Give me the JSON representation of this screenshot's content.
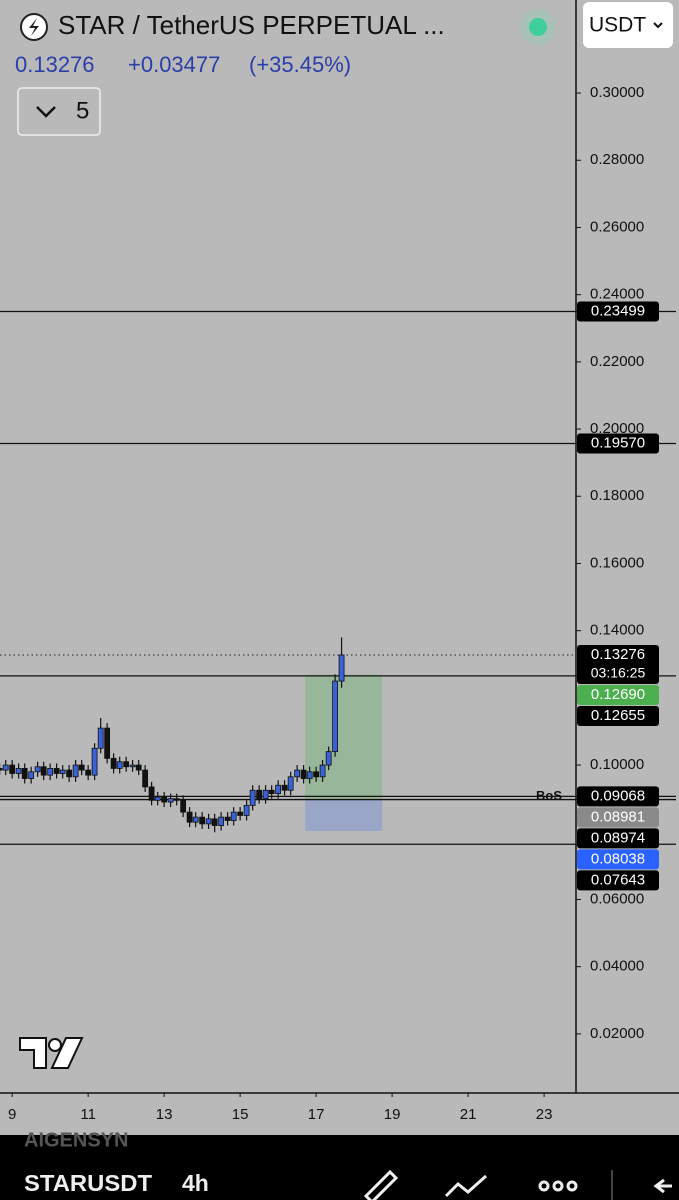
{
  "header": {
    "title": "STAR / TetherUS PERPETUAL ...",
    "price": "0.13276",
    "change": "+0.03477",
    "change_pct": "(+35.45%)",
    "collapse_count": "5",
    "currency": "USDT"
  },
  "chart_data": {
    "type": "candlestick",
    "x": [
      8.67,
      8.83,
      9,
      9.17,
      9.33,
      9.5,
      9.67,
      9.83,
      10,
      10.17,
      10.33,
      10.5,
      10.67,
      10.83,
      11,
      11.17,
      11.33,
      11.5,
      11.67,
      11.83,
      12,
      12.17,
      12.33,
      12.5,
      12.67,
      12.83,
      13,
      13.17,
      13.33,
      13.5,
      13.67,
      13.83,
      14,
      14.17,
      14.33,
      14.5,
      14.67,
      14.83,
      15,
      15.17,
      15.33,
      15.5,
      15.67,
      15.83,
      16,
      16.17,
      16.33,
      16.5,
      16.67,
      16.83,
      17,
      17.17,
      17.33,
      17.5,
      17.67
    ],
    "open": [
      0.099,
      0.0985,
      0.1,
      0.0975,
      0.099,
      0.096,
      0.098,
      0.0995,
      0.097,
      0.099,
      0.0975,
      0.0985,
      0.0965,
      0.1,
      0.0985,
      0.097,
      0.105,
      0.111,
      0.102,
      0.099,
      0.101,
      0.0995,
      0.1,
      0.0985,
      0.0935,
      0.0895,
      0.0905,
      0.089,
      0.09,
      0.0895,
      0.086,
      0.083,
      0.0845,
      0.0825,
      0.084,
      0.082,
      0.0845,
      0.0835,
      0.086,
      0.085,
      0.088,
      0.0925,
      0.09,
      0.0925,
      0.0915,
      0.094,
      0.0925,
      0.0965,
      0.0985,
      0.096,
      0.098,
      0.0965,
      0.1,
      0.104,
      0.125
    ],
    "high": [
      0.1005,
      0.1015,
      0.1015,
      0.1005,
      0.1005,
      0.0995,
      0.101,
      0.101,
      0.1005,
      0.1005,
      0.1,
      0.1,
      0.1015,
      0.1015,
      0.1,
      0.1065,
      0.114,
      0.1125,
      0.1035,
      0.1025,
      0.1025,
      0.1015,
      0.1015,
      0.1,
      0.095,
      0.092,
      0.092,
      0.0915,
      0.0915,
      0.091,
      0.0875,
      0.086,
      0.086,
      0.0855,
      0.0855,
      0.086,
      0.086,
      0.0875,
      0.0875,
      0.0895,
      0.094,
      0.094,
      0.094,
      0.094,
      0.0955,
      0.0955,
      0.098,
      0.1,
      0.1,
      0.0995,
      0.0995,
      0.1015,
      0.1055,
      0.127,
      0.138
    ],
    "low": [
      0.097,
      0.097,
      0.096,
      0.096,
      0.0945,
      0.0945,
      0.0965,
      0.0955,
      0.0955,
      0.096,
      0.096,
      0.095,
      0.095,
      0.097,
      0.0955,
      0.0955,
      0.1035,
      0.1005,
      0.0975,
      0.0975,
      0.098,
      0.098,
      0.097,
      0.092,
      0.088,
      0.088,
      0.0875,
      0.0875,
      0.088,
      0.0845,
      0.0815,
      0.0815,
      0.081,
      0.081,
      0.08,
      0.0805,
      0.082,
      0.082,
      0.0835,
      0.0835,
      0.0865,
      0.0885,
      0.0885,
      0.09,
      0.09,
      0.091,
      0.091,
      0.095,
      0.0945,
      0.0945,
      0.095,
      0.095,
      0.0985,
      0.1025,
      0.123
    ],
    "close": [
      0.0985,
      0.1,
      0.0975,
      0.099,
      0.096,
      0.098,
      0.0995,
      0.097,
      0.099,
      0.0975,
      0.0985,
      0.0965,
      0.1,
      0.0985,
      0.097,
      0.105,
      0.111,
      0.102,
      0.099,
      0.101,
      0.0995,
      0.1,
      0.0985,
      0.0935,
      0.0895,
      0.0905,
      0.089,
      0.09,
      0.0895,
      0.086,
      0.083,
      0.0845,
      0.0825,
      0.084,
      0.082,
      0.0845,
      0.0835,
      0.086,
      0.085,
      0.088,
      0.0925,
      0.09,
      0.0925,
      0.0915,
      0.094,
      0.0925,
      0.0965,
      0.0985,
      0.096,
      0.098,
      0.0965,
      0.1,
      0.104,
      0.125,
      0.13276
    ],
    "up_color": "#3a62d8",
    "down_color": "#111111",
    "xlim": [
      8.68,
      23.84
    ],
    "xticks": [
      9,
      11,
      13,
      15,
      17,
      19,
      21,
      23
    ],
    "ylim": [
      0.0024,
      0.3277
    ],
    "yticks": [
      {
        "value": 0.3,
        "label": "0.30000"
      },
      {
        "value": 0.28,
        "label": "0.28000"
      },
      {
        "value": 0.26,
        "label": "0.26000"
      },
      {
        "value": 0.24,
        "label": "0.24000"
      },
      {
        "value": 0.22,
        "label": "0.22000"
      },
      {
        "value": 0.2,
        "label": "0.20000"
      },
      {
        "value": 0.18,
        "label": "0.18000"
      },
      {
        "value": 0.16,
        "label": "0.16000"
      },
      {
        "value": 0.14,
        "label": "0.14000"
      },
      {
        "value": 0.1,
        "label": "0.10000"
      },
      {
        "value": 0.06,
        "label": "0.06000"
      },
      {
        "value": 0.04,
        "label": "0.04000"
      },
      {
        "value": 0.02,
        "label": "0.02000"
      }
    ],
    "levels": [
      0.23499,
      {
        "value": 0.1957,
        "label": "0.19570"
      },
      0.12655,
      0.09068,
      0.08974,
      0.07643
    ],
    "annotations": [
      {
        "text": "BoS",
        "y": 0.09068
      }
    ],
    "last_price": 0.13276,
    "countdown": "03:16:25",
    "position": {
      "x_start": 16.71,
      "x_end": 18.74,
      "target": {
        "value": 0.1269,
        "label": "0.12690"
      },
      "entry": 0.08981,
      "stop": 0.08038,
      "target_color": "#4caf50",
      "entry_color": "#8a8a8a",
      "stop_color": "#2962ff"
    }
  },
  "footer": {
    "watermark": "AIGENSYN",
    "symbol": "STARUSDT",
    "interval": "4h"
  }
}
